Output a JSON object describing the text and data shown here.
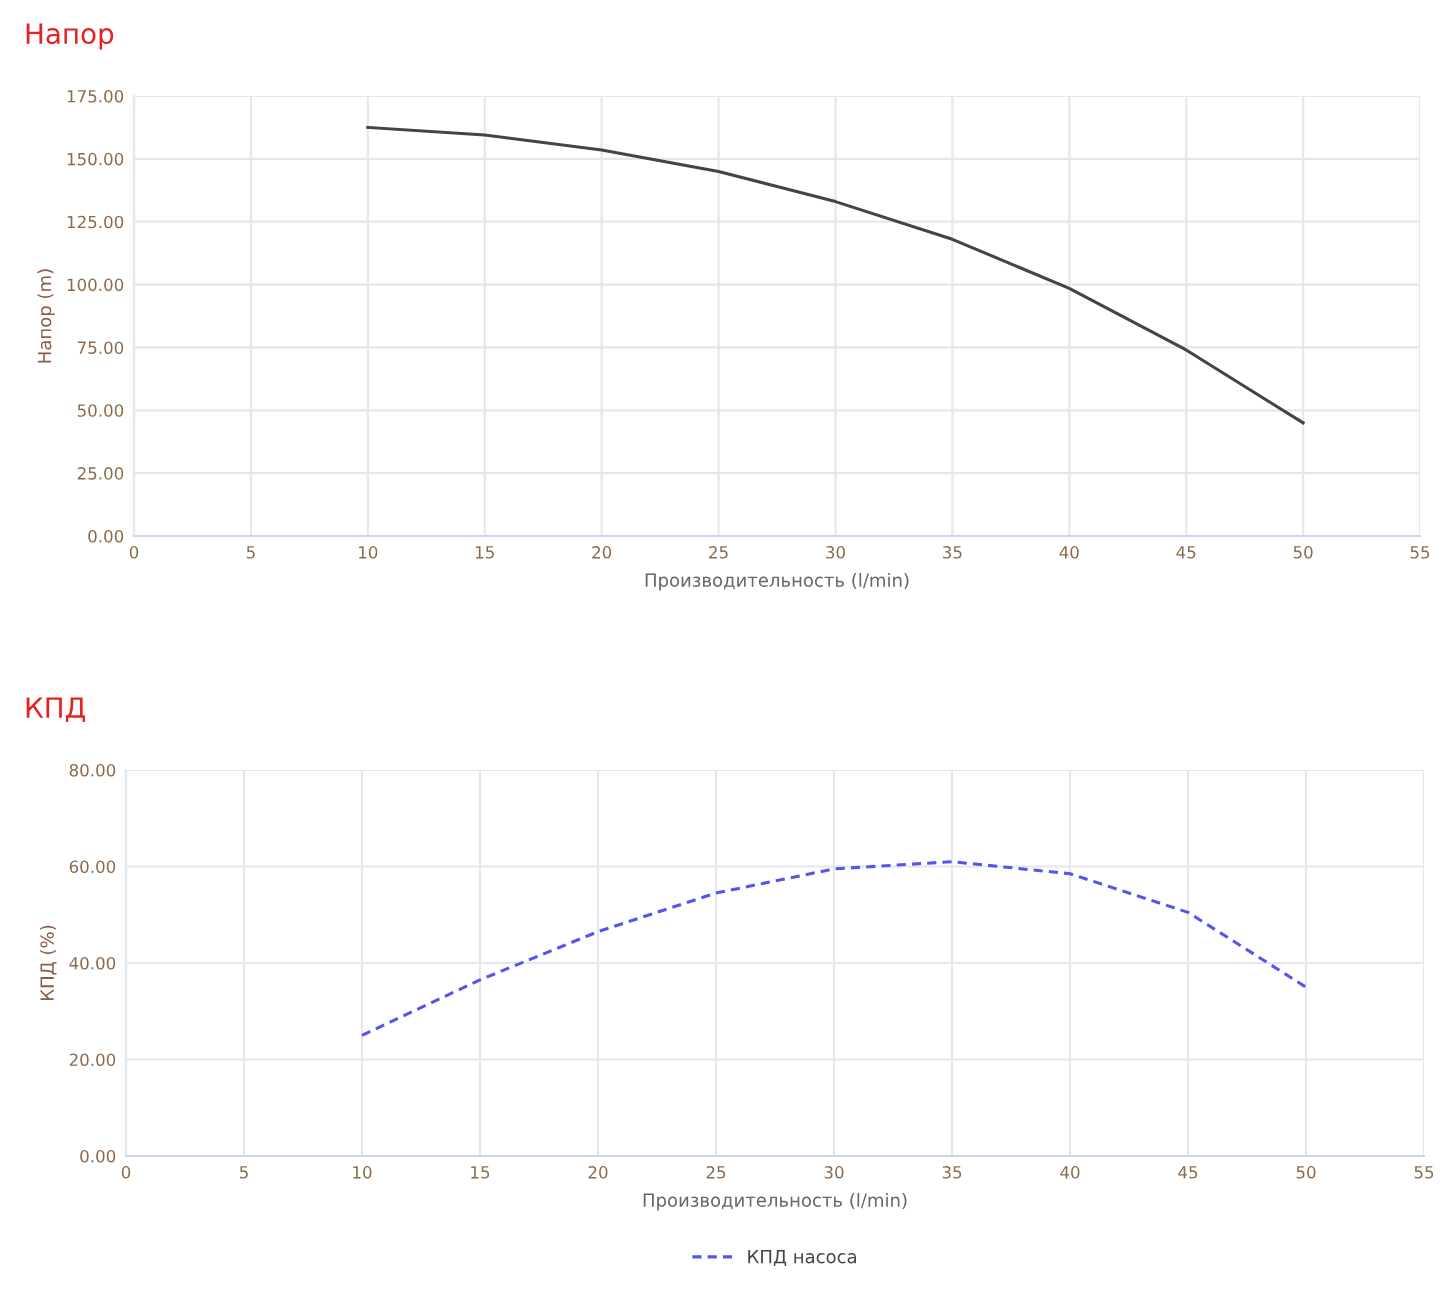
{
  "chart_data": [
    {
      "type": "line",
      "title": "Напор",
      "xlabel": "Производительность (l/min)",
      "ylabel": "Напор (m)",
      "x": [
        10,
        15,
        20,
        25,
        30,
        35,
        40,
        45,
        50
      ],
      "series": [
        {
          "color": "#444444",
          "values": [
            162.5,
            159.5,
            153.5,
            145,
            133,
            118,
            98.5,
            74,
            45
          ]
        }
      ],
      "xlim": [
        0,
        55
      ],
      "xticks": [
        0,
        5,
        10,
        15,
        20,
        25,
        30,
        35,
        40,
        45,
        50,
        55
      ],
      "ylim": [
        0,
        175
      ],
      "yticks": [
        {
          "value": 0,
          "label": "0.00"
        },
        {
          "value": 25,
          "label": "25.00"
        },
        {
          "value": 50,
          "label": "50.00"
        },
        {
          "value": 75,
          "label": "75.00"
        },
        {
          "value": 100,
          "label": "100.00"
        },
        {
          "value": 125,
          "label": "125.00"
        },
        {
          "value": 150,
          "label": "150.00"
        },
        {
          "value": 175,
          "label": "175.00"
        }
      ],
      "grid": true,
      "line_style": "solid",
      "marker": "none"
    },
    {
      "type": "line",
      "title": "КПД",
      "xlabel": "Производительность (l/min)",
      "ylabel": "КПД (%)",
      "x": [
        10,
        15,
        20,
        25,
        30,
        35,
        40,
        45,
        50
      ],
      "series": [
        {
          "name": "КПД насоса",
          "color": "#5555ee",
          "values": [
            25,
            36.5,
            46.5,
            54.5,
            59.5,
            61,
            58.5,
            50.5,
            35
          ]
        }
      ],
      "xlim": [
        0,
        55
      ],
      "xticks": [
        0,
        5,
        10,
        15,
        20,
        25,
        30,
        35,
        40,
        45,
        50,
        55
      ],
      "ylim": [
        0,
        80
      ],
      "yticks": [
        {
          "value": 0,
          "label": "0.00"
        },
        {
          "value": 20,
          "label": "20.00"
        },
        {
          "value": 40,
          "label": "40.00"
        },
        {
          "value": 60,
          "label": "60.00"
        },
        {
          "value": 80,
          "label": "80.00"
        }
      ],
      "grid": true,
      "line_style": "dashed",
      "marker": "none",
      "legend": "bottom"
    }
  ]
}
